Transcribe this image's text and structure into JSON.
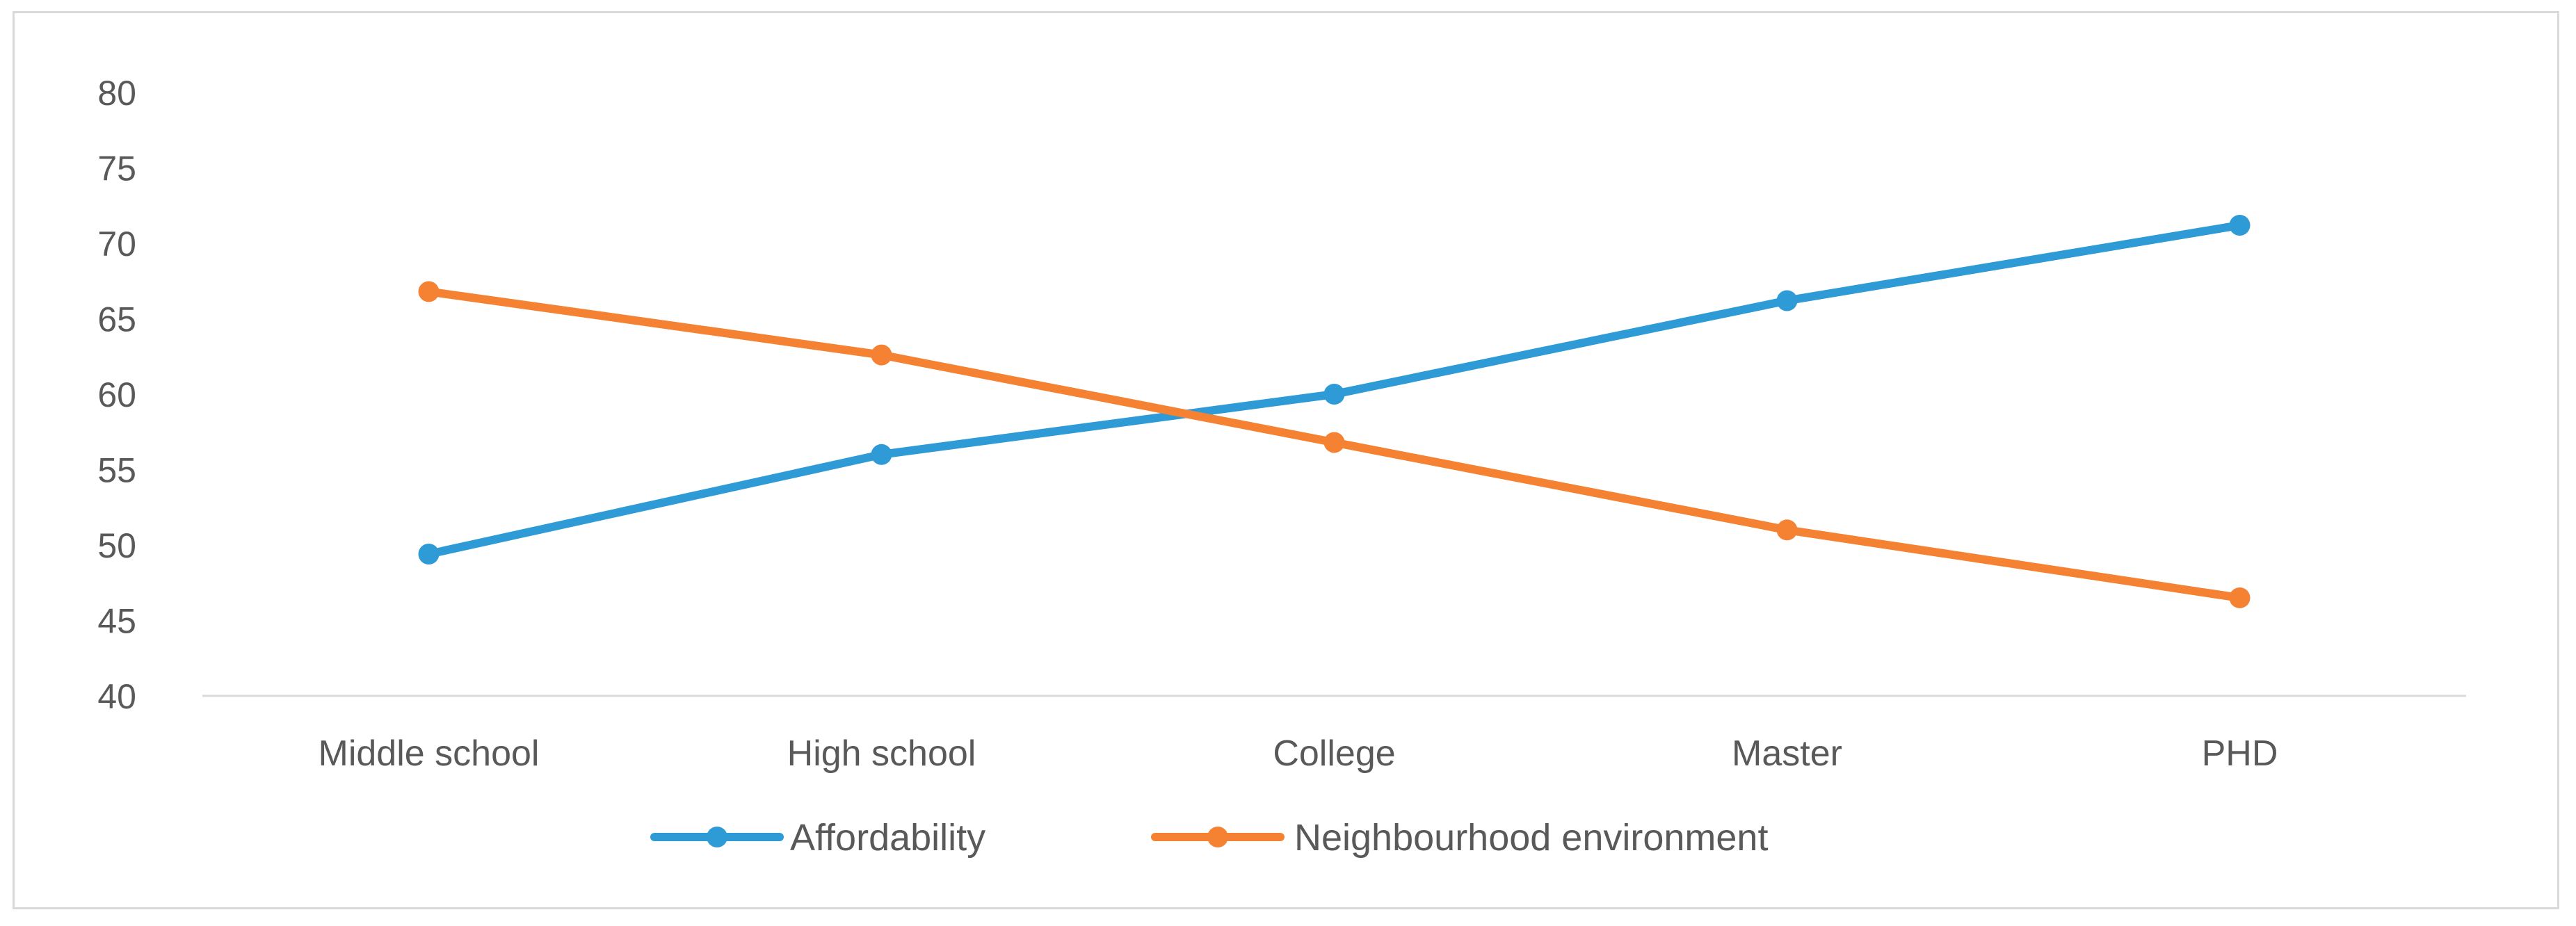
{
  "chart_data": {
    "type": "line",
    "title": "",
    "xlabel": "",
    "ylabel": "",
    "categories": [
      "Middle school",
      "High school",
      "College",
      "Master",
      "PHD"
    ],
    "ylim": [
      40,
      80
    ],
    "yticks": [
      40,
      45,
      50,
      55,
      60,
      65,
      70,
      75,
      80
    ],
    "series": [
      {
        "name": "Affordability",
        "color": "#2e9bd6",
        "values": [
          49.4,
          56.0,
          60.0,
          66.2,
          71.2
        ]
      },
      {
        "name": "Neighbourhood environment",
        "color": "#f58233",
        "values": [
          66.8,
          62.6,
          56.8,
          51.0,
          46.5
        ]
      }
    ],
    "grid": false,
    "legend": "bottom-center"
  }
}
